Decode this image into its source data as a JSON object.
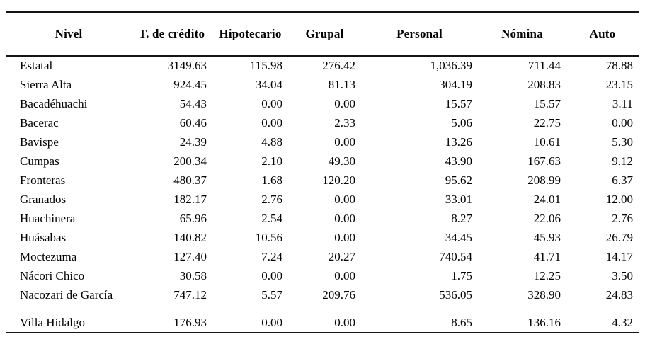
{
  "page": {
    "background_color": "#ffffff",
    "text_color": "#000000",
    "rule_color": "#151515"
  },
  "table": {
    "columns": [
      "Nivel",
      "T. de crédito",
      "Hipotecario",
      "Grupal",
      "Personal",
      "Nómina",
      "Auto"
    ],
    "rows": [
      {
        "nivel": "Estatal",
        "values": [
          "3149.63",
          "115.98",
          "276.42",
          "1,036.39",
          "711.44",
          "78.88"
        ]
      },
      {
        "nivel": "Sierra Alta",
        "values": [
          "924.45",
          "34.04",
          "81.13",
          "304.19",
          "208.83",
          "23.15"
        ]
      },
      {
        "nivel": "Bacadéhuachi",
        "values": [
          "54.43",
          "0.00",
          "0.00",
          "15.57",
          "15.57",
          "3.11"
        ]
      },
      {
        "nivel": "Bacerac",
        "values": [
          "60.46",
          "0.00",
          "2.33",
          "5.06",
          "22.75",
          "0.00"
        ]
      },
      {
        "nivel": "Bavispe",
        "values": [
          "24.39",
          "4.88",
          "0.00",
          "13.26",
          "10.61",
          "5.30"
        ]
      },
      {
        "nivel": "Cumpas",
        "values": [
          "200.34",
          "2.10",
          "49.30",
          "43.90",
          "167.63",
          "9.12"
        ]
      },
      {
        "nivel": "Fronteras",
        "values": [
          "480.37",
          "1.68",
          "120.20",
          "95.62",
          "208.99",
          "6.37"
        ]
      },
      {
        "nivel": "Granados",
        "values": [
          "182.17",
          "2.76",
          "0.00",
          "33.01",
          "24.01",
          "12.00"
        ]
      },
      {
        "nivel": "Huachinera",
        "values": [
          "65.96",
          "2.54",
          "0.00",
          "8.27",
          "22.06",
          "2.76"
        ]
      },
      {
        "nivel": "Huásabas",
        "values": [
          "140.82",
          "10.56",
          "0.00",
          "34.45",
          "45.93",
          "26.79"
        ]
      },
      {
        "nivel": "Moctezuma",
        "values": [
          "127.40",
          "7.24",
          "20.27",
          "740.54",
          "41.71",
          "14.17"
        ]
      },
      {
        "nivel": "Nácori Chico",
        "values": [
          "30.58",
          "0.00",
          "0.00",
          "1.75",
          "12.25",
          "3.50"
        ]
      },
      {
        "nivel": "Nacozari de García",
        "values": [
          "747.12",
          "5.57",
          "209.76",
          "536.05",
          "328.90",
          "24.83"
        ]
      },
      {
        "nivel": "",
        "spacer": true,
        "values": [
          "",
          "",
          "",
          "",
          "",
          ""
        ]
      },
      {
        "nivel": "Villa Hidalgo",
        "values": [
          "176.93",
          "0.00",
          "0.00",
          "8.65",
          "136.16",
          "4.32"
        ]
      }
    ]
  }
}
